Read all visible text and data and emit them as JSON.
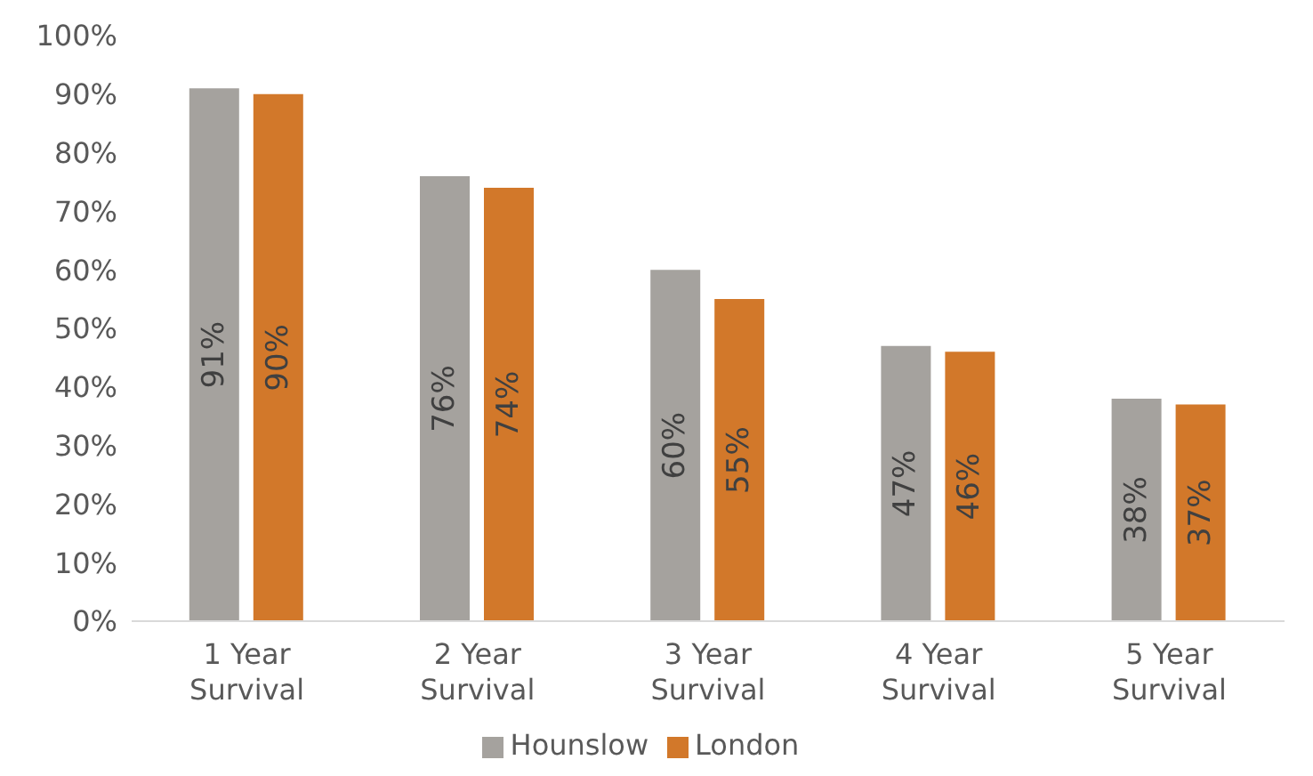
{
  "chart_data": {
    "type": "bar",
    "categories": [
      "1 Year Survival",
      "2 Year Survival",
      "3 Year Survival",
      "4 Year Survival",
      "5 Year Survival"
    ],
    "series": [
      {
        "name": "Hounslow",
        "color": "#a5a29e",
        "values": [
          91,
          76,
          60,
          47,
          38
        ],
        "value_labels": [
          "91%",
          "76%",
          "60%",
          "47%",
          "38%"
        ]
      },
      {
        "name": "London",
        "color": "#d2782a",
        "values": [
          90,
          74,
          55,
          46,
          37
        ],
        "value_labels": [
          "90%",
          "74%",
          "55%",
          "46%",
          "37%"
        ]
      }
    ],
    "ylim": [
      0,
      100
    ],
    "yticks": [
      {
        "value": 0,
        "label": "0%"
      },
      {
        "value": 10,
        "label": "10%"
      },
      {
        "value": 20,
        "label": "20%"
      },
      {
        "value": 30,
        "label": "30%"
      },
      {
        "value": 40,
        "label": "40%"
      },
      {
        "value": 50,
        "label": "50%"
      },
      {
        "value": 60,
        "label": "60%"
      },
      {
        "value": 70,
        "label": "70%"
      },
      {
        "value": 80,
        "label": "80%"
      },
      {
        "value": 90,
        "label": "90%"
      },
      {
        "value": 100,
        "label": "100%"
      }
    ],
    "grid": false,
    "legend": "bottom"
  }
}
